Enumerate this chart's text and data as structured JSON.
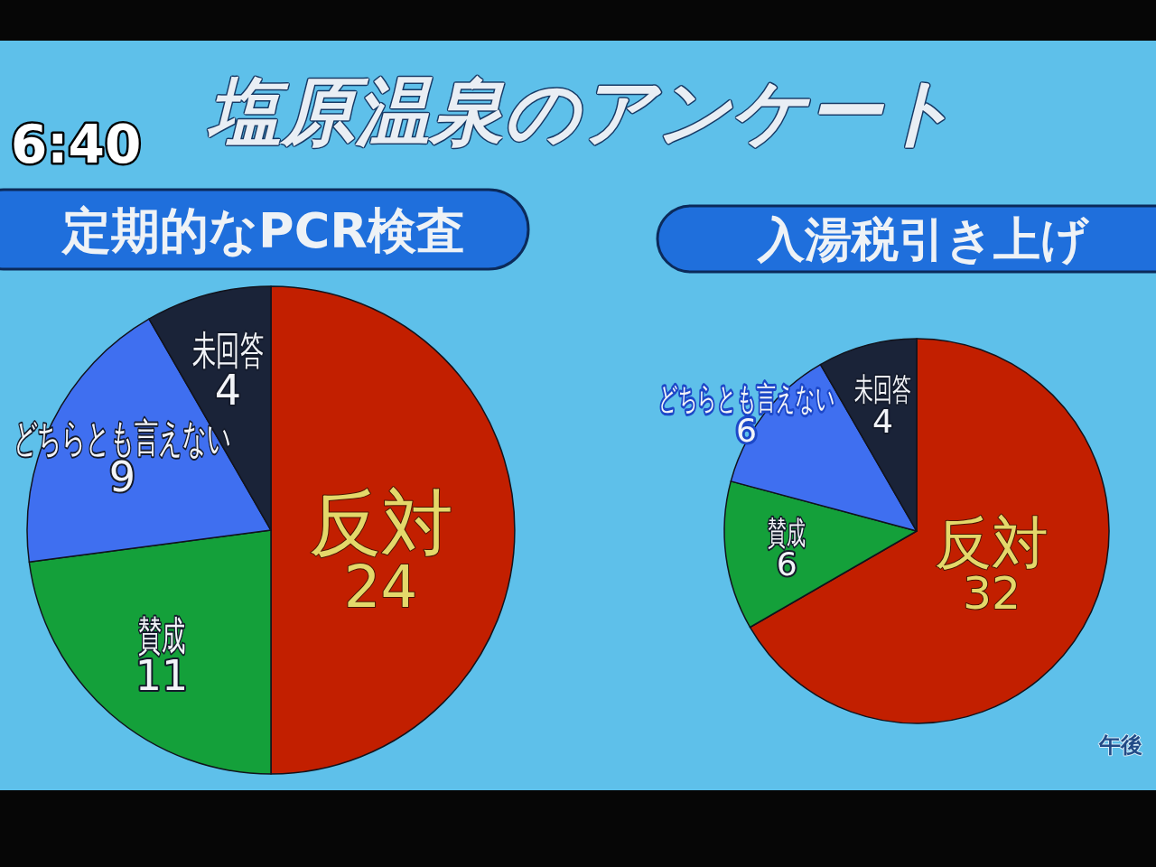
{
  "chart_data": [
    {
      "type": "pie",
      "title": "定期的なPCR検査",
      "categories": [
        "反対",
        "賛成",
        "どちらとも言えない",
        "未回答"
      ],
      "values": [
        24,
        11,
        9,
        4
      ],
      "colors": [
        "#c21f00",
        "#14a03a",
        "#3f6ff0",
        "#1a2338"
      ],
      "data_labels": true,
      "annotations": [
        "塩原温泉のアンケート",
        "6:40"
      ]
    },
    {
      "type": "pie",
      "title": "入湯税引き上げ",
      "categories": [
        "反対",
        "賛成",
        "どちらとも言えない",
        "未回答"
      ],
      "values": [
        32,
        6,
        6,
        4
      ],
      "colors": [
        "#c21f00",
        "#14a03a",
        "#3f6ff0",
        "#1a2338"
      ],
      "data_labels": true,
      "annotations": [
        "午後"
      ]
    }
  ]
}
